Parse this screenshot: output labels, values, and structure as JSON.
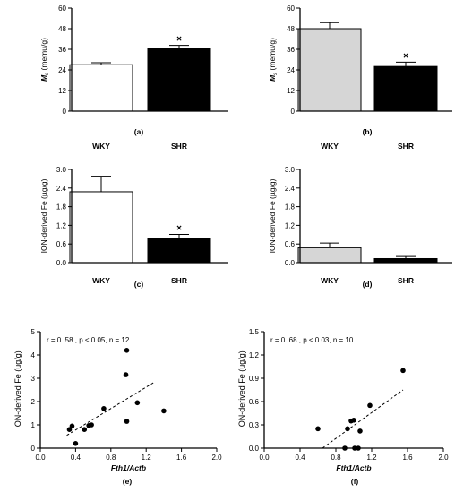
{
  "colors": {
    "wky_ab": "#d6d6d6",
    "wky_a": "#ffffff",
    "shr": "#000000",
    "axis": "#000000"
  },
  "chart_data": [
    {
      "type": "bar",
      "panel_label": "(a)",
      "categories": [
        "WKY",
        "SHR"
      ],
      "values": [
        27,
        36.5
      ],
      "errors": [
        1.2,
        1.8
      ],
      "bar_colors": [
        "#ffffff",
        "#000000"
      ],
      "significance": [
        "",
        "×"
      ],
      "ylabel_main": "M",
      "ylabel_sub": "s",
      "ylabel_unit": " (memu/g)",
      "ylim": [
        0,
        60
      ],
      "yticks": [
        0,
        12,
        24,
        36,
        48,
        60
      ]
    },
    {
      "type": "bar",
      "panel_label": "(b)",
      "categories": [
        "WKY",
        "SHR"
      ],
      "values": [
        48,
        26
      ],
      "errors": [
        3.5,
        2.5
      ],
      "bar_colors": [
        "#d6d6d6",
        "#000000"
      ],
      "significance": [
        "",
        "×"
      ],
      "ylabel_main": "M",
      "ylabel_sub": "s",
      "ylabel_unit": " (memu/g)",
      "ylim": [
        0,
        60
      ],
      "yticks": [
        0,
        12,
        24,
        36,
        48,
        60
      ]
    },
    {
      "type": "bar",
      "panel_label": "(c)",
      "categories": [
        "WKY",
        "SHR"
      ],
      "values": [
        2.28,
        0.78
      ],
      "errors": [
        0.5,
        0.13
      ],
      "bar_colors": [
        "#ffffff",
        "#000000"
      ],
      "significance": [
        "",
        "×"
      ],
      "ylabel": "ION-derived Fe (µg/g)",
      "ylim": [
        0,
        3.0
      ],
      "yticks": [
        "0.0",
        "0.6",
        "1.2",
        "1.8",
        "2.4",
        "3.0"
      ]
    },
    {
      "type": "bar",
      "panel_label": "(d)",
      "categories": [
        "WKY",
        "SHR"
      ],
      "values": [
        0.48,
        0.13
      ],
      "errors": [
        0.15,
        0.07
      ],
      "bar_colors": [
        "#d6d6d6",
        "#000000"
      ],
      "significance": [
        "",
        ""
      ],
      "ylabel": "ION-derived Fe (µg/g)",
      "ylim": [
        0,
        3.0
      ],
      "yticks": [
        "0.0",
        "0.6",
        "1.2",
        "1.8",
        "2.4",
        "3.0"
      ]
    },
    {
      "type": "scatter",
      "panel_label": "(e)",
      "annotation": "r = 0. 58 , p < 0.05,  n = 12",
      "xlabel": "Fth1/Actb",
      "ylabel": "ION-derived Fe (ug/g)",
      "xlim": [
        0,
        2.0
      ],
      "ylim": [
        0,
        5
      ],
      "xticks": [
        "0.0",
        "0.4",
        "0.8",
        "1.2",
        "1.6",
        "2.0"
      ],
      "yticks": [
        "0",
        "1",
        "2",
        "3",
        "4",
        "5"
      ],
      "points": [
        {
          "x": 0.33,
          "y": 0.8
        },
        {
          "x": 0.36,
          "y": 0.95
        },
        {
          "x": 0.4,
          "y": 0.2
        },
        {
          "x": 0.5,
          "y": 0.8
        },
        {
          "x": 0.55,
          "y": 0.97
        },
        {
          "x": 0.58,
          "y": 1.0
        },
        {
          "x": 0.72,
          "y": 1.7
        },
        {
          "x": 0.97,
          "y": 3.15
        },
        {
          "x": 0.98,
          "y": 4.2
        },
        {
          "x": 0.98,
          "y": 1.15
        },
        {
          "x": 1.1,
          "y": 1.95
        },
        {
          "x": 1.4,
          "y": 1.6
        }
      ],
      "trendline": [
        {
          "x": 0.3,
          "y": 0.55
        },
        {
          "x": 1.3,
          "y": 2.85
        }
      ]
    },
    {
      "type": "scatter",
      "panel_label": "(f)",
      "annotation": "r = 0. 68 , p < 0.03,  n = 10",
      "xlabel": "Fth1/Actb",
      "ylabel": "ION-derived Fe (ug/g)",
      "xlim": [
        0,
        2.0
      ],
      "ylim": [
        0,
        1.5
      ],
      "xticks": [
        "0.0",
        "0.4",
        "0.8",
        "1.2",
        "1.6",
        "2.0"
      ],
      "yticks": [
        "0.0",
        "0.3",
        "0.6",
        "0.9",
        "1.2",
        "1.5"
      ],
      "points": [
        {
          "x": 0.6,
          "y": 0.25
        },
        {
          "x": 0.9,
          "y": 0.0
        },
        {
          "x": 0.93,
          "y": 0.25
        },
        {
          "x": 0.97,
          "y": 0.35
        },
        {
          "x": 1.0,
          "y": 0.36
        },
        {
          "x": 1.01,
          "y": 0.0
        },
        {
          "x": 1.05,
          "y": 0.0
        },
        {
          "x": 1.07,
          "y": 0.22
        },
        {
          "x": 1.18,
          "y": 0.55
        },
        {
          "x": 1.55,
          "y": 1.0
        }
      ],
      "trendline": [
        {
          "x": 0.65,
          "y": 0.0
        },
        {
          "x": 1.55,
          "y": 0.75
        }
      ]
    }
  ]
}
